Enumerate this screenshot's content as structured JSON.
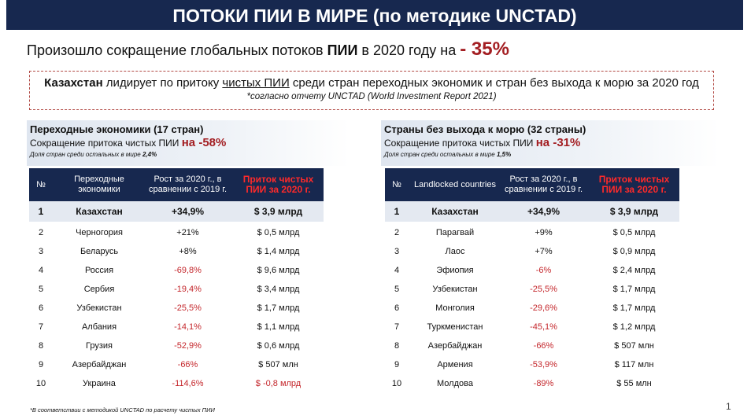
{
  "title": "ПОТОКИ ПИИ В МИРЕ (по методике UNCTAD)",
  "subtitle": {
    "text_before": "Произошло сокращение глобальных потоков ",
    "bold_word": "ПИИ",
    "text_after": " в 2020 году на ",
    "percent": "- 35%"
  },
  "highlight": {
    "bold_country": "Казахстан",
    "text1": " лидирует по притоку ",
    "underlined": "чистых ПИИ",
    "text2": " среди стран переходных экономик и стран без выхода к морю за 2020 год",
    "note": "*согласно отчету UNCTAD (World Investment Report 2021)"
  },
  "left": {
    "heading": "Переходные экономики (17 стран)",
    "decline_text": "Сокращение притока чистых ПИИ ",
    "decline_value": "на -58%",
    "share_text": "Доля стран среди остальных в мире ",
    "share_value": "2,4%",
    "headers": [
      "№",
      "Переходные экономики",
      "Рост за 2020 г., в сравнении с 2019 г.",
      "Приток чистых ПИИ за 2020 г."
    ],
    "rows": [
      [
        "1",
        "Казахстан",
        "+34,9%",
        "$ 3,9 млрд"
      ],
      [
        "2",
        "Черногория",
        "+21%",
        "$ 0,5 млрд"
      ],
      [
        "3",
        "Беларусь",
        "+8%",
        "$ 1,4 млрд"
      ],
      [
        "4",
        "Россия",
        "-69,8%",
        "$ 9,6 млрд"
      ],
      [
        "5",
        "Сербия",
        "-19,4%",
        "$ 3,4 млрд"
      ],
      [
        "6",
        "Узбекистан",
        "-25,5%",
        "$ 1,7 млрд"
      ],
      [
        "7",
        "Албания",
        "-14,1%",
        "$ 1,1 млрд"
      ],
      [
        "8",
        "Грузия",
        "-52,9%",
        "$ 0,6 млрд"
      ],
      [
        "9",
        "Азербайджан",
        "-66%",
        "$ 507 млн"
      ],
      [
        "10",
        "Украина",
        "-114,6%",
        "$ -0,8 млрд"
      ]
    ]
  },
  "right": {
    "heading": "Страны без выхода к морю (32 страны)",
    "decline_text": "Сокращение притока чистых ПИИ ",
    "decline_value": "на -31%",
    "share_text": "Доля стран среди остальных в мире ",
    "share_value": "1,5%",
    "headers": [
      "№",
      "Landlocked countries",
      "Рост за 2020 г., в сравнении с 2019 г.",
      "Приток чистых ПИИ за 2020 г."
    ],
    "rows": [
      [
        "1",
        "Казахстан",
        "+34,9%",
        "$ 3,9 млрд"
      ],
      [
        "2",
        "Парагвай",
        "+9%",
        "$ 0,5 млрд"
      ],
      [
        "3",
        "Лаос",
        "+7%",
        "$ 0,9 млрд"
      ],
      [
        "4",
        "Эфиопия",
        "-6%",
        "$ 2,4 млрд"
      ],
      [
        "5",
        "Узбекистан",
        "-25,5%",
        "$ 1,7 млрд"
      ],
      [
        "6",
        "Монголия",
        "-29,6%",
        "$ 1,7 млрд"
      ],
      [
        "7",
        "Туркменистан",
        "-45,1%",
        "$ 1,2 млрд"
      ],
      [
        "8",
        "Азербайджан",
        "-66%",
        "$ 507 млн"
      ],
      [
        "9",
        "Армения",
        "-53,9%",
        "$ 117 млн"
      ],
      [
        "10",
        "Молдова",
        "-89%",
        "$ 55 млн"
      ]
    ]
  },
  "footnote": "*В соответствии с методикой UNCTAD по расчету чистых ПИИ",
  "page_number": "1",
  "colors": {
    "header_navy": "#17284f",
    "accent_red": "#a31e22",
    "negative_red": "#c4262b"
  }
}
